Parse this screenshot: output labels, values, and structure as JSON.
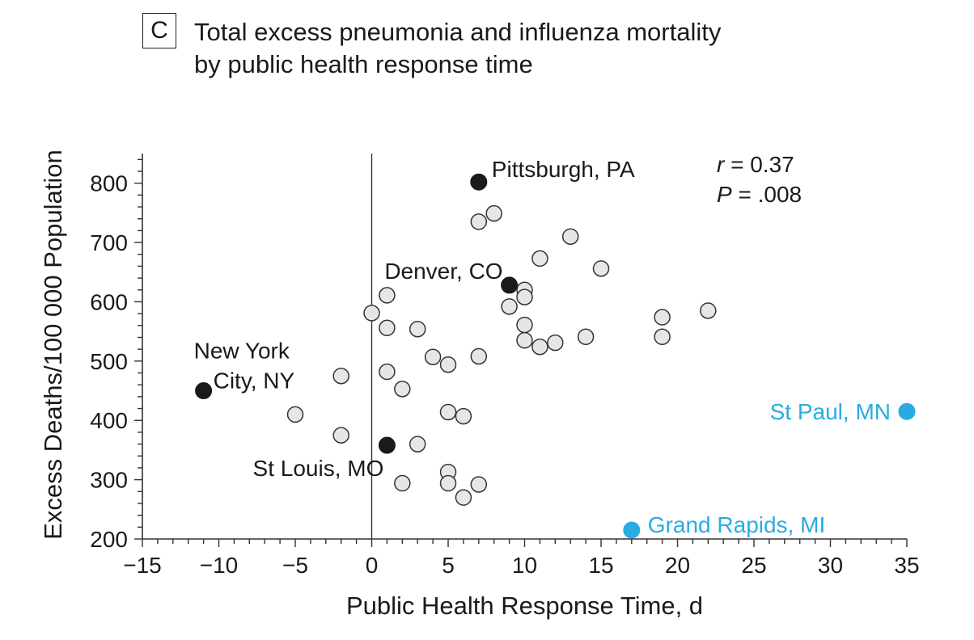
{
  "panel_label": "C",
  "chart_data": {
    "type": "scatter",
    "title_lines": [
      "Total excess pneumonia and influenza mortality",
      "by public health response time"
    ],
    "xlabel": "Public Health Response Time, d",
    "ylabel": "Excess Deaths/100 000 Population",
    "xlim": [
      -15,
      35
    ],
    "ylim": [
      200,
      850
    ],
    "xticks": [
      -15,
      -10,
      -5,
      0,
      5,
      10,
      15,
      20,
      25,
      30,
      35
    ],
    "xtick_labels": [
      "−15",
      "−10",
      "−5",
      "0",
      "5",
      "10",
      "15",
      "20",
      "25",
      "30",
      "35"
    ],
    "yticks": [
      200,
      300,
      400,
      500,
      600,
      700,
      800
    ],
    "ytick_labels": [
      "200",
      "300",
      "400",
      "500",
      "600",
      "700",
      "800"
    ],
    "reference_line_x": 0,
    "grid": false,
    "stats": {
      "r_symbol": "r",
      "r_value": "= 0.37",
      "p_symbol": "P",
      "p_value": "= .008"
    },
    "series": [
      {
        "style": "open",
        "color": "#e6e6e6",
        "points": [
          [
            7,
            735
          ],
          [
            8,
            749
          ],
          [
            13,
            710
          ],
          [
            11,
            673
          ],
          [
            15,
            656
          ],
          [
            10,
            620
          ],
          [
            10,
            608
          ],
          [
            9,
            592
          ],
          [
            1,
            611
          ],
          [
            0,
            581
          ],
          [
            1,
            556
          ],
          [
            3,
            554
          ],
          [
            10,
            561
          ],
          [
            10,
            535
          ],
          [
            11,
            524
          ],
          [
            12,
            531
          ],
          [
            14,
            541
          ],
          [
            19,
            574
          ],
          [
            22,
            585
          ],
          [
            19,
            541
          ],
          [
            4,
            507
          ],
          [
            5,
            494
          ],
          [
            7,
            508
          ],
          [
            -2,
            475
          ],
          [
            1,
            482
          ],
          [
            2,
            453
          ],
          [
            -5,
            410
          ],
          [
            5,
            414
          ],
          [
            6,
            407
          ],
          [
            -2,
            375
          ],
          [
            3,
            360
          ],
          [
            5,
            313
          ],
          [
            2,
            294
          ],
          [
            5,
            294
          ],
          [
            7,
            292
          ],
          [
            6,
            270
          ]
        ]
      },
      {
        "style": "highlight",
        "color": "#1a1a1a",
        "points": [
          {
            "x": 7,
            "y": 802,
            "label": "Pittsburgh, PA"
          },
          {
            "x": 9,
            "y": 628,
            "label": "Denver, CO"
          },
          {
            "x": -11,
            "y": 450,
            "label_lines": [
              "New York",
              "City, NY"
            ]
          },
          {
            "x": 1,
            "y": 358,
            "label": "St Louis, MO"
          }
        ]
      },
      {
        "style": "highlight-blue",
        "color": "#29abe2",
        "points": [
          {
            "x": 35,
            "y": 415,
            "label": "St Paul, MN"
          },
          {
            "x": 17,
            "y": 215,
            "label": "Grand Rapids, MI"
          }
        ]
      }
    ]
  }
}
